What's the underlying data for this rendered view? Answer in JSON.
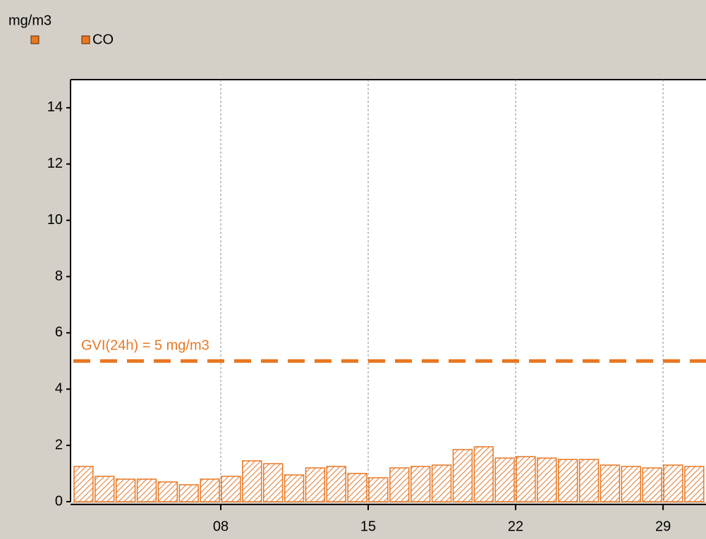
{
  "chart_data": {
    "type": "bar",
    "y_label": "mg/m3",
    "categories": [
      null,
      null,
      null,
      null,
      null,
      null,
      null,
      "08",
      null,
      null,
      null,
      null,
      null,
      null,
      "15",
      null,
      null,
      null,
      null,
      null,
      null,
      "22",
      null,
      null,
      null,
      null,
      null,
      null,
      "29",
      null
    ],
    "series": [
      {
        "name": "CO",
        "color": "#e87722",
        "values": [
          1.25,
          0.9,
          0.8,
          0.8,
          0.7,
          0.6,
          0.8,
          0.9,
          1.45,
          1.35,
          0.95,
          1.2,
          1.25,
          1.0,
          0.85,
          1.2,
          1.25,
          1.3,
          1.85,
          1.95,
          1.55,
          1.6,
          1.55,
          1.5,
          1.5,
          1.3,
          1.25,
          1.2,
          1.3,
          1.25
        ]
      }
    ],
    "ylim": [
      0,
      15
    ],
    "yticks": [
      0,
      2,
      4,
      6,
      8,
      10,
      12,
      14
    ],
    "reference_line": {
      "value": 5,
      "label": "GVI(24h) = 5 mg/m3"
    },
    "grid": true
  }
}
